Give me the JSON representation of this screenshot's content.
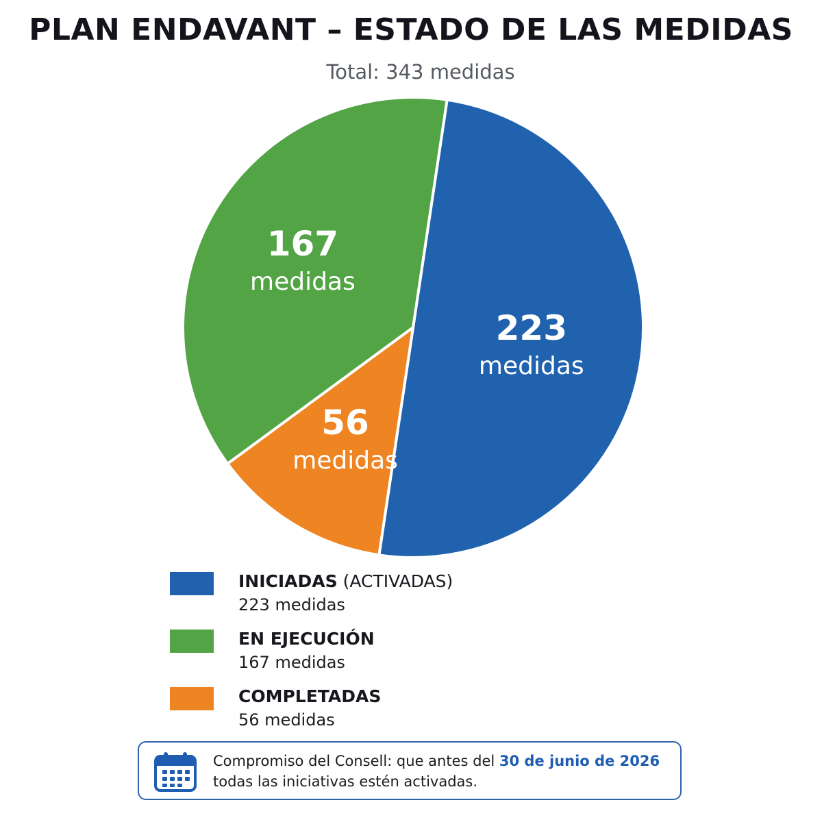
{
  "chart_data": {
    "type": "pie",
    "title": "PLAN ENDAVANT – ESTADO DE LAS MEDIDAS",
    "subtitle": "Total: 343 medidas",
    "slices": [
      {
        "key": "iniciadas",
        "value": 223,
        "label_num": "223",
        "label_unit": "medidas",
        "color": "#2162ae"
      },
      {
        "key": "completadas",
        "value": 56,
        "label_num": "56",
        "label_unit": "medidas",
        "color": "#ef8423"
      },
      {
        "key": "ejecucion",
        "value": 167,
        "label_num": "167",
        "label_unit": "medidas",
        "color": "#52a445"
      }
    ],
    "legend": [
      {
        "name": "INICIADAS",
        "qualifier": " (ACTIVADAS)",
        "value_text": "223 medidas",
        "color": "#2162ae"
      },
      {
        "name": "EN EJECUCIÓN",
        "qualifier": "",
        "value_text": "167 medidas",
        "color": "#52a445"
      },
      {
        "name": "COMPLETADAS",
        "qualifier": "",
        "value_text": "56 medidas",
        "color": "#ef8423"
      }
    ]
  },
  "note": {
    "icon": "calendar-icon",
    "line1_prefix": "Compromiso del Consell: que antes del ",
    "line1_date": "30 de junio de 2026",
    "line2": "todas las iniciativas estén activadas.",
    "border_color": "#2f62ae",
    "date_color": "#1f5db3"
  }
}
